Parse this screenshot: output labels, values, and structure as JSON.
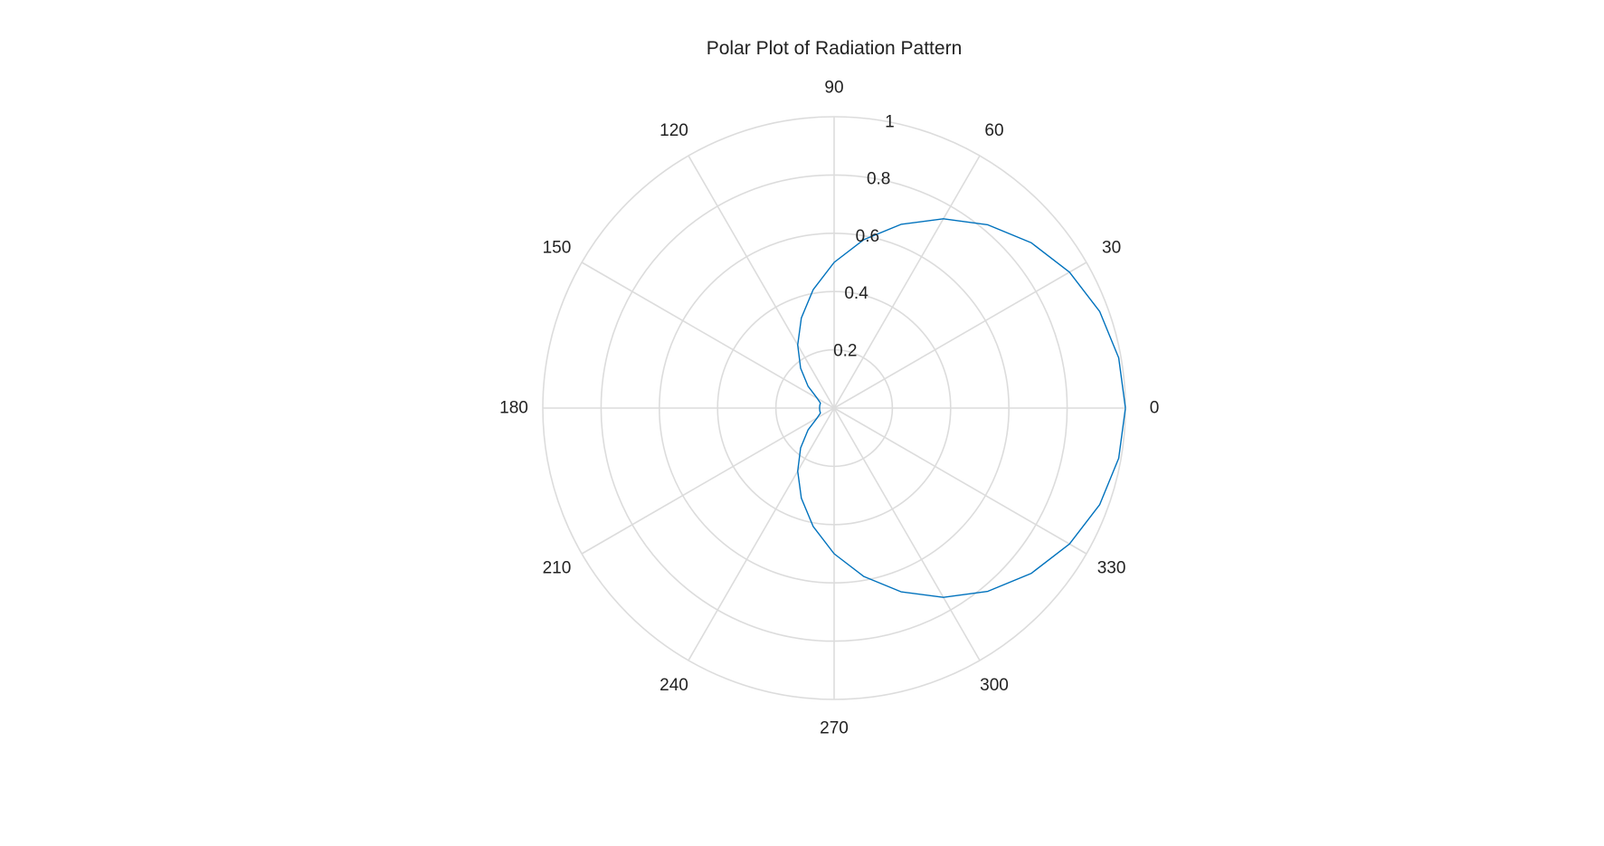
{
  "chart_data": {
    "type": "polar-line",
    "title": "Polar Plot of Radiation Pattern",
    "theta_unit": "degrees",
    "theta_ticks": [
      0,
      30,
      60,
      90,
      120,
      150,
      180,
      210,
      240,
      270,
      300,
      330
    ],
    "theta_tick_labels": [
      "0",
      "30",
      "60",
      "90",
      "120",
      "150",
      "180",
      "210",
      "240",
      "270",
      "300",
      "330"
    ],
    "r_ticks": [
      0.2,
      0.4,
      0.6,
      0.8,
      1
    ],
    "r_tick_labels": [
      "0.2",
      "0.4",
      "0.6",
      "0.8",
      "1"
    ],
    "rlim": [
      0,
      1
    ],
    "grid": true,
    "grid_color": "#dcdcdc",
    "series": [
      {
        "line_color": "#0072bd",
        "theta": [
          0,
          10,
          20,
          30,
          40,
          50,
          60,
          70,
          80,
          90,
          100,
          110,
          120,
          130,
          140,
          150,
          160,
          170,
          180,
          190,
          200,
          210,
          220,
          230,
          240,
          250,
          260,
          270,
          280,
          290,
          300,
          310,
          320,
          330,
          340,
          350,
          360
        ],
        "r": [
          1.0,
          0.992,
          0.97,
          0.933,
          0.883,
          0.821,
          0.75,
          0.671,
          0.587,
          0.5,
          0.413,
          0.329,
          0.25,
          0.179,
          0.117,
          0.067,
          0.05,
          0.05,
          0.05,
          0.05,
          0.05,
          0.067,
          0.117,
          0.179,
          0.25,
          0.329,
          0.413,
          0.5,
          0.587,
          0.671,
          0.75,
          0.821,
          0.883,
          0.933,
          0.97,
          0.992,
          1.0
        ]
      }
    ]
  }
}
